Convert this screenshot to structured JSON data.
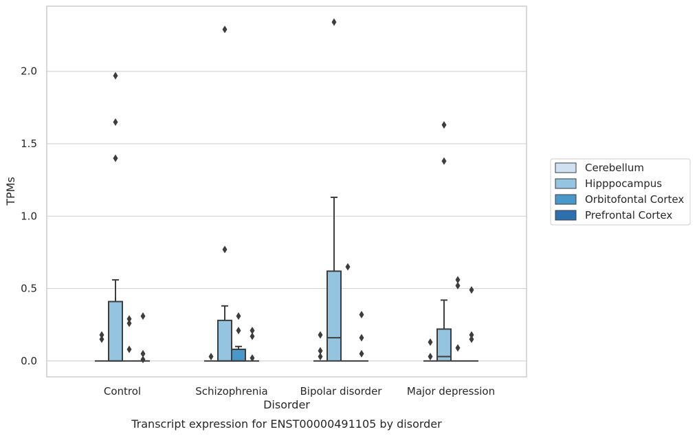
{
  "chart_data": {
    "type": "box",
    "title": "Transcript expression for ENST00000491105 by disorder",
    "xlabel": "Disorder",
    "ylabel": "TPMs",
    "categories": [
      "Control",
      "Schizophrenia",
      "Bipolar disorder",
      "Major depression"
    ],
    "ylim": [
      -0.11,
      2.45
    ],
    "yticks": [
      0.0,
      0.5,
      1.0,
      1.5,
      2.0
    ],
    "ytick_labels": [
      "0.0",
      "0.5",
      "1.0",
      "1.5",
      "2.0"
    ],
    "grid": true,
    "legend_position": "right",
    "colors": {
      "Cerebellum": "#d0e1f2",
      "Hipppocampus": "#94c4df",
      "Orbitofontal Cortex": "#4a98c9",
      "Prefrontal Cortex": "#2e6faf"
    },
    "series": [
      {
        "name": "Cerebellum",
        "boxes": [
          {
            "q1": 0,
            "median": 0,
            "q3": 0,
            "whisker_low": 0,
            "whisker_high": 0,
            "outliers": [
              0.15,
              0.18
            ]
          },
          {
            "q1": 0,
            "median": 0,
            "q3": 0,
            "whisker_low": 0,
            "whisker_high": 0,
            "outliers": [
              0.03
            ]
          },
          {
            "q1": 0,
            "median": 0,
            "q3": 0,
            "whisker_low": 0,
            "whisker_high": 0,
            "outliers": [
              0.03,
              0.07,
              0.18
            ]
          },
          {
            "q1": 0,
            "median": 0,
            "q3": 0,
            "whisker_low": 0,
            "whisker_high": 0,
            "outliers": [
              0.03,
              0.13
            ]
          }
        ]
      },
      {
        "name": "Hipppocampus",
        "boxes": [
          {
            "q1": 0,
            "median": 0,
            "q3": 0.41,
            "whisker_low": 0,
            "whisker_high": 0.56,
            "outliers": [
              1.4,
              1.65,
              1.97
            ]
          },
          {
            "q1": 0,
            "median": 0,
            "q3": 0.28,
            "whisker_low": 0,
            "whisker_high": 0.38,
            "outliers": [
              0.77,
              2.29
            ]
          },
          {
            "q1": 0,
            "median": 0.16,
            "q3": 0.62,
            "whisker_low": 0,
            "whisker_high": 1.13,
            "outliers": [
              2.34
            ]
          },
          {
            "q1": 0,
            "median": 0.03,
            "q3": 0.22,
            "whisker_low": 0,
            "whisker_high": 0.42,
            "outliers": [
              1.38,
              1.63
            ]
          }
        ]
      },
      {
        "name": "Orbitofontal Cortex",
        "boxes": [
          {
            "q1": 0,
            "median": 0,
            "q3": 0,
            "whisker_low": 0,
            "whisker_high": 0,
            "outliers": [
              0.08,
              0.26,
              0.29
            ]
          },
          {
            "q1": 0,
            "median": 0,
            "q3": 0.08,
            "whisker_low": 0,
            "whisker_high": 0.1,
            "outliers": [
              0.21,
              0.31
            ]
          },
          {
            "q1": 0,
            "median": 0,
            "q3": 0,
            "whisker_low": 0,
            "whisker_high": 0,
            "outliers": [
              0.65
            ]
          },
          {
            "q1": 0,
            "median": 0,
            "q3": 0,
            "whisker_low": 0,
            "whisker_high": 0,
            "outliers": [
              0.09,
              0.52,
              0.56
            ]
          }
        ]
      },
      {
        "name": "Prefrontal Cortex",
        "boxes": [
          {
            "q1": 0,
            "median": 0,
            "q3": 0,
            "whisker_low": 0,
            "whisker_high": 0,
            "outliers": [
              0.01,
              0.05,
              0.31
            ]
          },
          {
            "q1": 0,
            "median": 0,
            "q3": 0,
            "whisker_low": 0,
            "whisker_high": 0,
            "outliers": [
              0.02,
              0.17,
              0.21
            ]
          },
          {
            "q1": 0,
            "median": 0,
            "q3": 0,
            "whisker_low": 0,
            "whisker_high": 0,
            "outliers": [
              0.05,
              0.16,
              0.32
            ]
          },
          {
            "q1": 0,
            "median": 0,
            "q3": 0,
            "whisker_low": 0,
            "whisker_high": 0,
            "outliers": [
              0.15,
              0.18,
              0.49
            ]
          }
        ]
      }
    ]
  }
}
